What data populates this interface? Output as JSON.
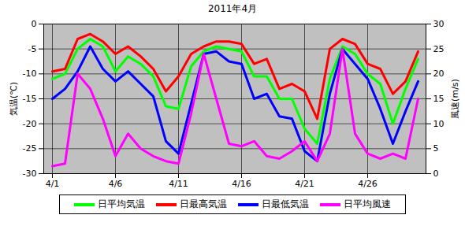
{
  "chart_data": {
    "type": "line",
    "title": "2011年4月",
    "ylabel": "気温(℃)",
    "y2label": "風速(m/s)",
    "categories": [
      "4/1",
      null,
      null,
      null,
      null,
      "4/6",
      null,
      null,
      null,
      null,
      "4/11",
      null,
      null,
      null,
      null,
      "4/16",
      null,
      null,
      null,
      null,
      "4/21",
      null,
      null,
      null,
      null,
      "4/26",
      null,
      null,
      null,
      null
    ],
    "series": [
      {
        "name": "日平均気温",
        "color": "#00ff00",
        "values": [
          -11,
          -10,
          -5,
          -3,
          -4.5,
          -9.5,
          -6.5,
          -8,
          -10.5,
          -16.5,
          -17,
          -8.5,
          -5.5,
          -4.5,
          -5,
          -5.5,
          -10.5,
          -10.5,
          -15,
          -15,
          -21,
          -24,
          -11,
          -4.5,
          -6,
          -10,
          -12,
          -20,
          -13,
          -7
        ]
      },
      {
        "name": "日最高気温",
        "color": "#ff0000",
        "values": [
          -9.5,
          -9,
          -3,
          -2,
          -3.5,
          -6,
          -4.5,
          -6.5,
          -9,
          -13.5,
          -10.5,
          -6,
          -4.5,
          -3.5,
          -3.5,
          -4,
          -8,
          -7,
          -13,
          -12,
          -13.5,
          -19,
          -5,
          -3,
          -4,
          -8,
          -9,
          -14,
          -11.5,
          -5.5
        ]
      },
      {
        "name": "日最低気温",
        "color": "#0000ff",
        "values": [
          -15,
          -13,
          -9.5,
          -4.5,
          -9,
          -11.5,
          -9.5,
          -12,
          -14.5,
          -23.5,
          -26,
          -16,
          -6,
          -5.5,
          -7.5,
          -8,
          -15,
          -14,
          -18.5,
          -19,
          -25.5,
          -27.5,
          -14,
          -5,
          -8,
          -11,
          -17,
          -24,
          -17.5,
          -11.5
        ]
      },
      {
        "name": "日平均風速",
        "color": "#ff00ff",
        "axis": "y2",
        "values": [
          1.5,
          2,
          20,
          17,
          11,
          3.5,
          8,
          5,
          3.5,
          2.5,
          2,
          12,
          24,
          15,
          6,
          5.5,
          6.5,
          3.5,
          3,
          4.5,
          6.5,
          2.5,
          8,
          25,
          8,
          4,
          3,
          4,
          3,
          15
        ]
      }
    ],
    "ylim": [
      -30,
      0
    ],
    "yticks": [
      -30,
      -25,
      -20,
      -15,
      -10,
      -5,
      0
    ],
    "y2lim": [
      0,
      30
    ],
    "y2ticks": [
      0,
      5,
      10,
      15,
      20,
      25,
      30
    ],
    "grid": true,
    "legend": "bottom"
  }
}
